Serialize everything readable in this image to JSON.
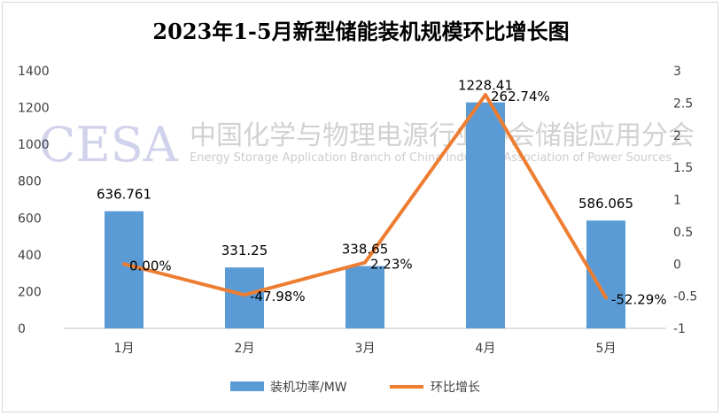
{
  "chart_data": {
    "type": "bar+line",
    "title": "2023年1-5月新型储能装机规模环比增长图",
    "categories": [
      "1月",
      "2月",
      "3月",
      "4月",
      "5月"
    ],
    "series": [
      {
        "name": "装机功率/MW",
        "kind": "bar",
        "axis": "left",
        "color": "#5b9bd5",
        "values": [
          636.761,
          331.25,
          338.65,
          1228.41,
          586.065
        ],
        "labels": [
          "636.761",
          "331.25",
          "338.65",
          "1228.41",
          "586.065"
        ]
      },
      {
        "name": "环比增长",
        "kind": "line",
        "axis": "right",
        "color": "#ed7d31",
        "values": [
          0.0,
          -0.4798,
          0.0223,
          2.6274,
          -0.5229
        ],
        "labels": [
          "0.00%",
          "-47.98%",
          "2.23%",
          "262.74%",
          "-52.29%"
        ]
      }
    ],
    "y_left": {
      "min": 0,
      "max": 1400,
      "ticks": [
        "0",
        "200",
        "400",
        "600",
        "800",
        "1000",
        "1200",
        "1400"
      ]
    },
    "y_right": {
      "min": -1,
      "max": 3,
      "ticks": [
        "-1",
        "-0.5",
        "0",
        "0.5",
        "1",
        "1.5",
        "2",
        "2.5",
        "3"
      ]
    },
    "legend_position": "bottom"
  },
  "watermark": {
    "logo": "CESA",
    "name_cn": "中国化学与物理电源行业协会储能应用分会",
    "name_en": "Energy Storage Application Branch of China Industrial Association of Power Sources"
  }
}
